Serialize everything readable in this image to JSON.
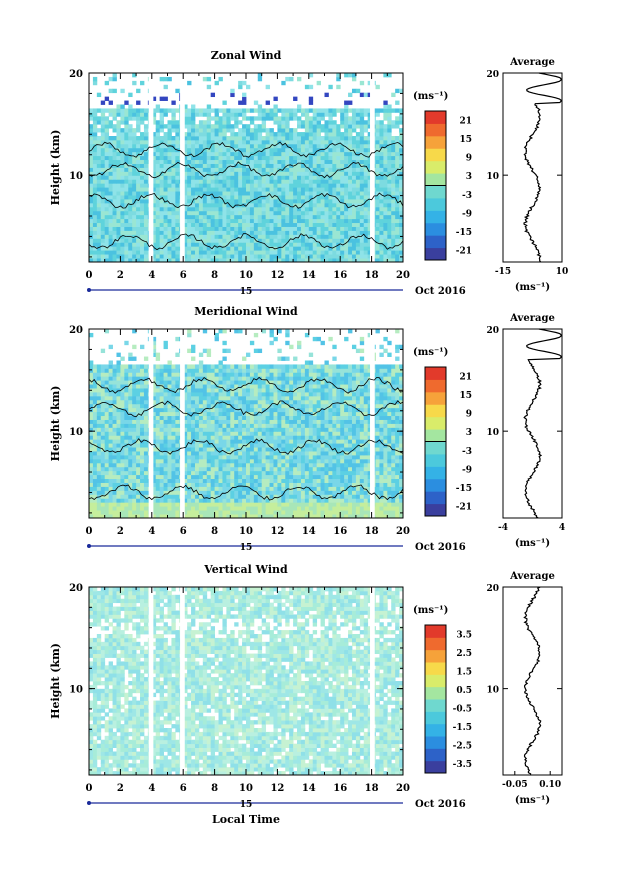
{
  "shared": {
    "x_ticks": [
      "0",
      "2",
      "4",
      "6",
      "8",
      "10",
      "12",
      "14",
      "16",
      "18",
      "20"
    ],
    "xlim": [
      0,
      20
    ],
    "date_day": "15",
    "date_label": "Oct 2016",
    "y_label": "Height (km)",
    "y_ticks": [
      "10",
      "20"
    ],
    "ylim": [
      1.5,
      20
    ],
    "x_label": "Local Time",
    "colorbar_unit": "(ms⁻¹)",
    "avg_title": "Average",
    "avg_xunit": "(ms⁻¹)"
  },
  "chart_data": [
    {
      "type": "heatmap",
      "title": "Zonal Wind",
      "xlabel": "",
      "ylabel": "Height (km)",
      "xlim": [
        0,
        20
      ],
      "ylim": [
        1.5,
        20
      ],
      "colorbar": {
        "ticks": [
          "21",
          "15",
          "9",
          "3",
          "-3",
          "-9",
          "-15",
          "-21"
        ],
        "range": [
          -24,
          24
        ]
      },
      "contours": true,
      "data_gaps_hours": [
        [
          3.8,
          4.1
        ],
        [
          5.8,
          6.1
        ],
        [
          17.9,
          18.2
        ]
      ],
      "average": {
        "title": "Average",
        "xticks": [
          "-15",
          "10"
        ],
        "xlim": [
          -15,
          10
        ],
        "yticks": [
          "10",
          "20"
        ]
      }
    },
    {
      "type": "heatmap",
      "title": "Meridional Wind",
      "xlabel": "",
      "ylabel": "Height (km)",
      "xlim": [
        0,
        20
      ],
      "ylim": [
        1.5,
        20
      ],
      "colorbar": {
        "ticks": [
          "21",
          "15",
          "9",
          "3",
          "-3",
          "-9",
          "-15",
          "-21"
        ],
        "range": [
          -24,
          24
        ]
      },
      "contours": true,
      "data_gaps_hours": [
        [
          3.8,
          4.1
        ],
        [
          5.8,
          6.1
        ],
        [
          17.9,
          18.2
        ]
      ],
      "average": {
        "title": "Average",
        "xticks": [
          "-4",
          "4"
        ],
        "xlim": [
          -4,
          4
        ],
        "yticks": [
          "10",
          "20"
        ]
      }
    },
    {
      "type": "heatmap",
      "title": "Vertical Wind",
      "xlabel": "Local Time",
      "ylabel": "Height (km)",
      "xlim": [
        0,
        20
      ],
      "ylim": [
        1.5,
        20
      ],
      "colorbar": {
        "ticks": [
          "3.5",
          "2.5",
          "1.5",
          "0.5",
          "-0.5",
          "-1.5",
          "-2.5",
          "-3.5"
        ],
        "range": [
          -4,
          4
        ]
      },
      "contours": false,
      "data_gaps_hours": [
        [
          3.8,
          4.1
        ],
        [
          5.8,
          6.1
        ],
        [
          17.9,
          18.2
        ]
      ],
      "average": {
        "title": "Average",
        "xticks": [
          "-0.05",
          "0.10"
        ],
        "xlim": [
          -0.1,
          0.15
        ],
        "yticks": [
          "10",
          "20"
        ]
      }
    }
  ],
  "colors": {
    "colorbar": [
      "#3a3f9e",
      "#2d62c8",
      "#2b8ee0",
      "#34b2e6",
      "#4cc9dc",
      "#6fd8cf",
      "#a4e6a0",
      "#d9ec6a",
      "#f7d94a",
      "#f6a23a",
      "#ef6a2e",
      "#e23a2b"
    ],
    "field_zonal": [
      "#5fd3dc",
      "#7ddbe0",
      "#9ae6d3",
      "#4bc2e0",
      "#8fe3e8"
    ],
    "field_meridional": [
      "#5cd0e3",
      "#79d7e8",
      "#96e3d9",
      "#52c3e6",
      "#b6ecc0"
    ],
    "field_vertical": [
      "#a7ecd9",
      "#b9f0e0",
      "#9ee7e6",
      "#c6f2d2",
      "#8fe0e8"
    ]
  }
}
